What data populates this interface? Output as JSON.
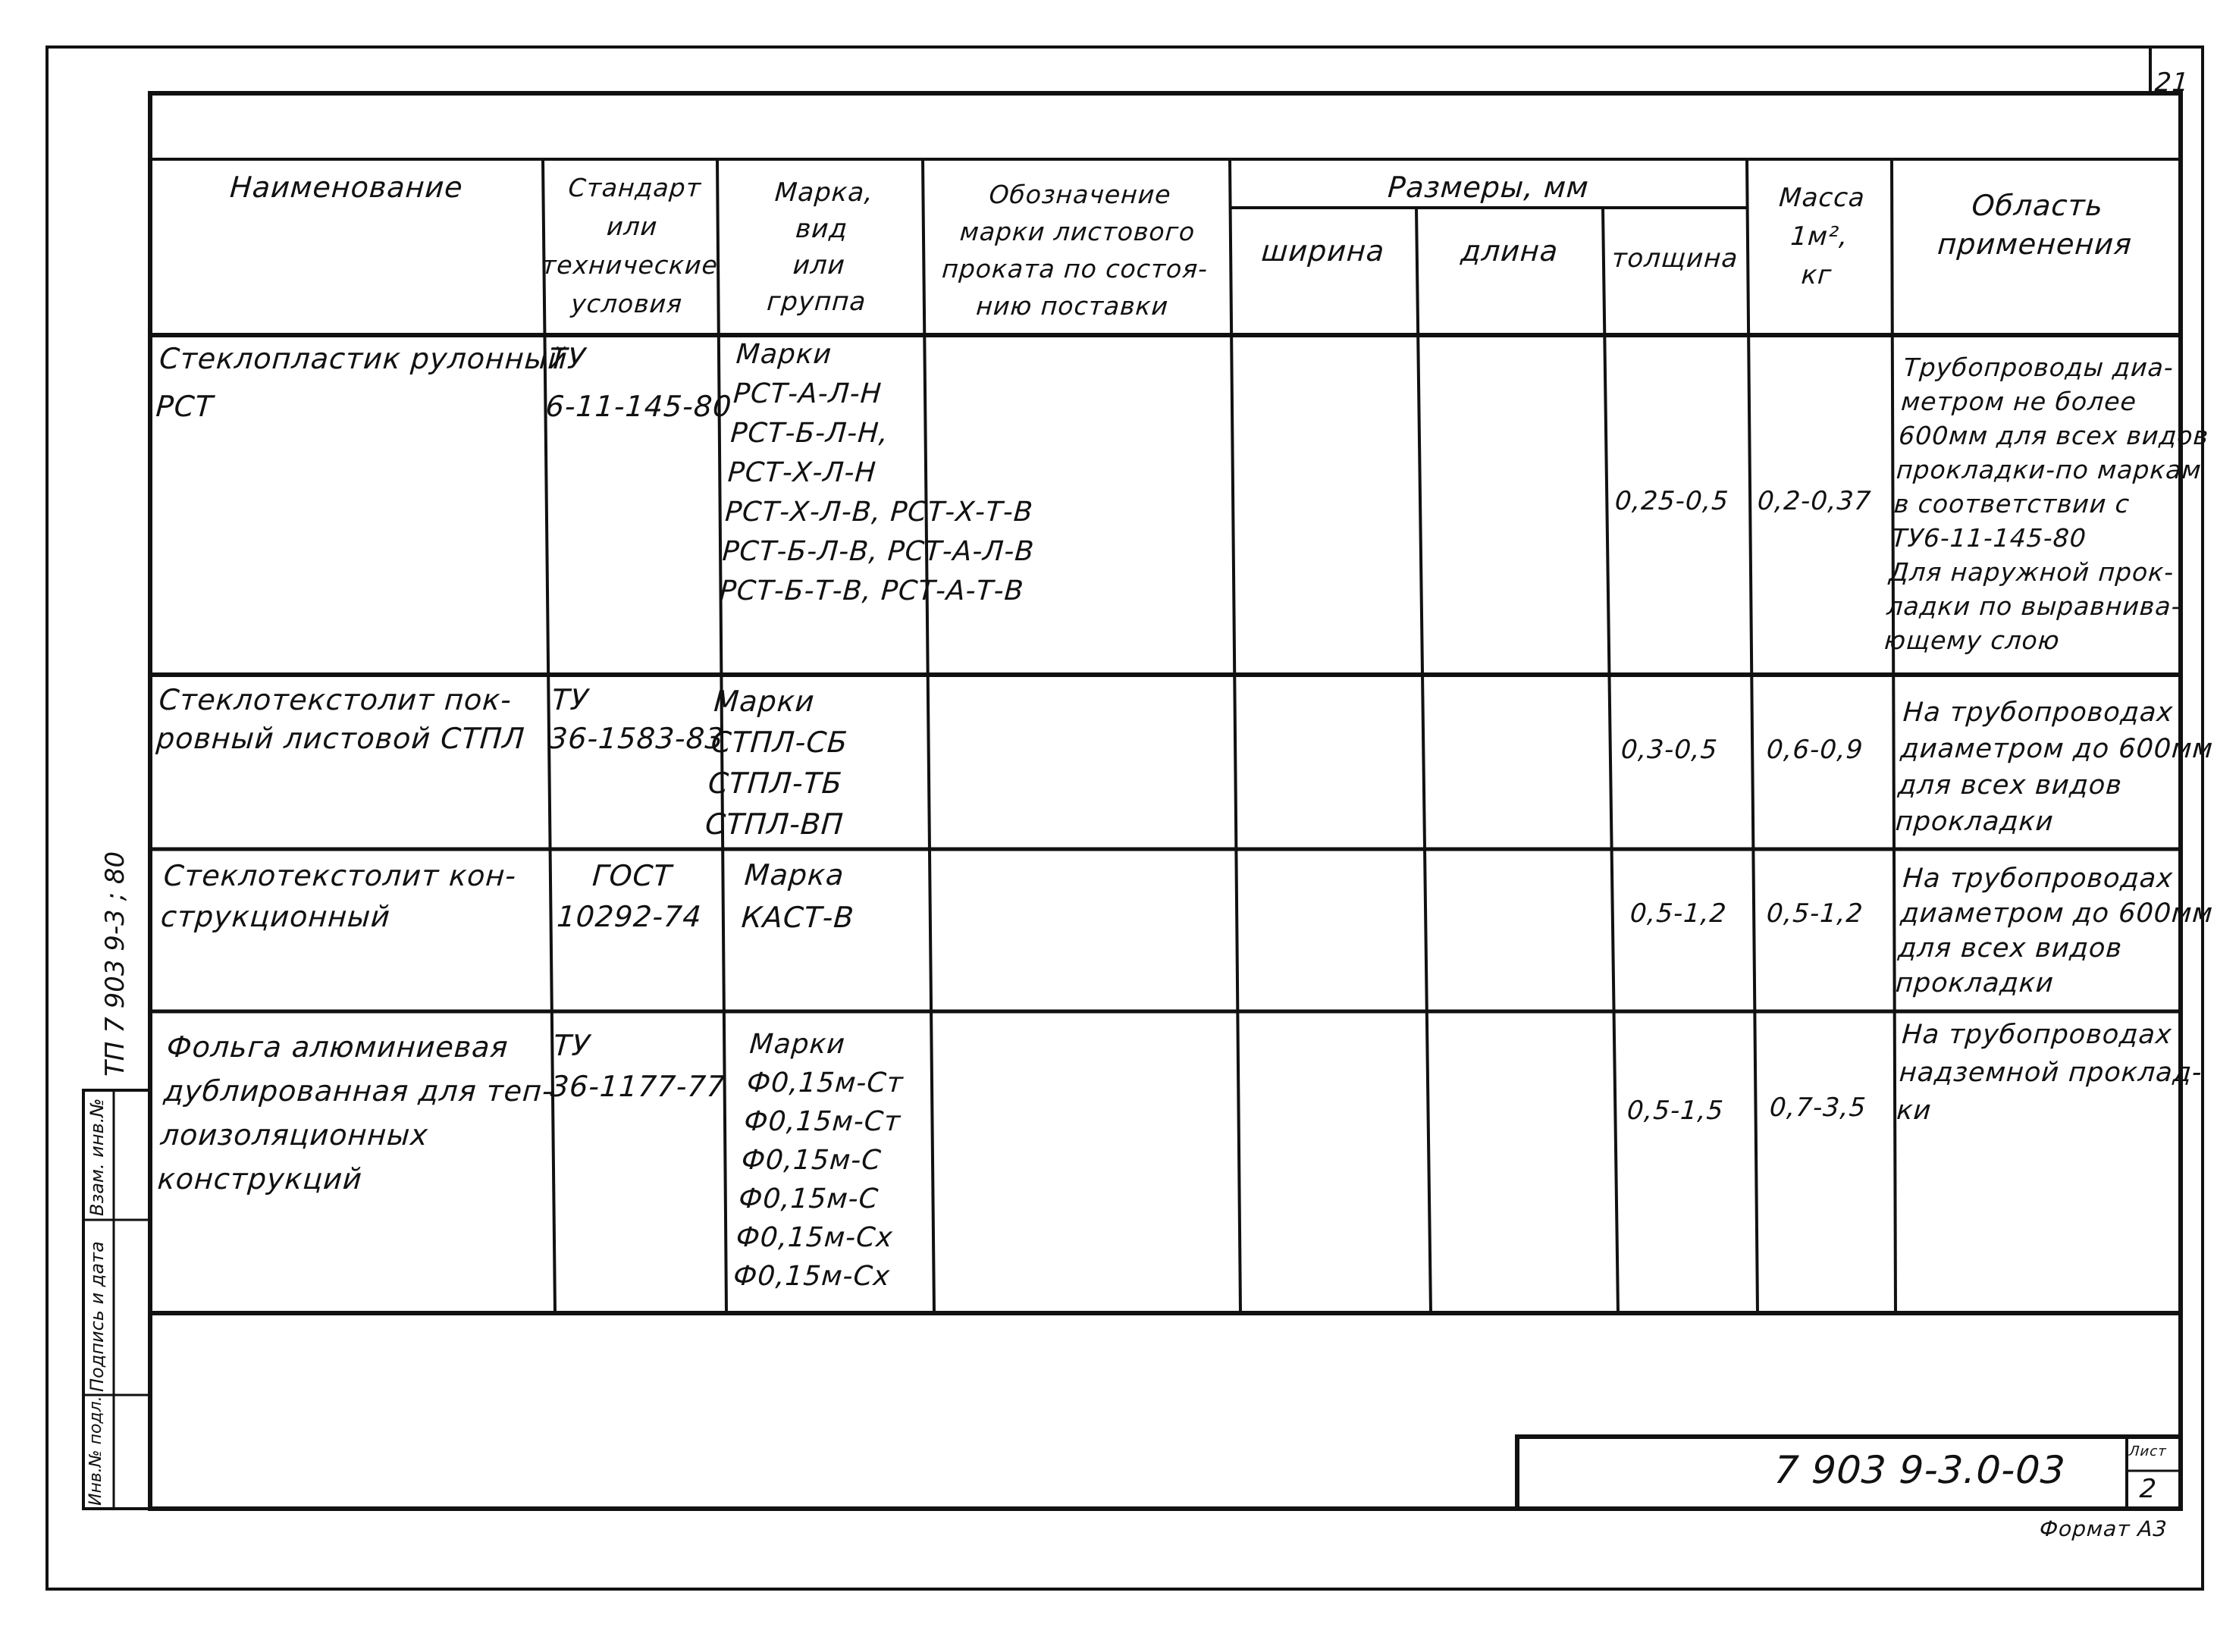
{
  "sheet_corner_number": "21",
  "header": {
    "name": "Наименование",
    "standard": "Стандарт\nили\nтехнические\nусловия",
    "grade": "Марка,\nвид\nили\nгруппа",
    "designation": "Обозначение\nмарки листового\nпроката по состоя-\nнию поставки",
    "dimensions": "Размеры, мм",
    "width": "ширина",
    "length": "длина",
    "thickness": "толщина",
    "mass": "Масса\n1м²,\nкг",
    "application": "Область\nприменения"
  },
  "rows": [
    {
      "name": "Стеклопластик рулонный\nРСТ",
      "standard": "ТУ\n6-11-145-80",
      "grade": "Марки\nРСТ-А-Л-Н\nРСТ-Б-Л-Н,\nРСТ-Х-Л-Н\nРСТ-Х-Л-В, РСТ-Х-Т-В\nРСТ-Б-Л-В, РСТ-А-Л-В\nРСТ-Б-Т-В, РСТ-А-Т-В",
      "designation": "",
      "width": "",
      "length": "",
      "thickness": "0,25-0,5",
      "mass": "0,2-0,37",
      "application": "Трубопроводы диа-\nметром не более\n600мм для всех видов\nпрокладки-по маркам\nв соответствии с\nТУ6-11-145-80\nДля наружной прок-\nладки по выравнива-\nющему слою"
    },
    {
      "name": "Стеклотекстолит пок-\nровный листовой СТПЛ",
      "standard": "ТУ\n36-1583-83",
      "grade": "Марки\nСТПЛ-СБ\nСТПЛ-ТБ\nСТПЛ-ВП",
      "designation": "",
      "width": "",
      "length": "",
      "thickness": "0,3-0,5",
      "mass": "0,6-0,9",
      "application": "На трубопроводах\nдиаметром до 600мм\nдля всех видов\nпрокладки"
    },
    {
      "name": "Стеклотекстолит кон-\nструкционный",
      "standard": "ГОСТ\n10292-74",
      "grade": "Марка\nКАСТ-В",
      "designation": "",
      "width": "",
      "length": "",
      "thickness": "0,5-1,2",
      "mass": "0,5-1,2",
      "application": "На трубопроводах\nдиаметром до 600мм\nдля всех видов\nпрокладки"
    },
    {
      "name": "Фольга алюминиевая\nдублированная для теп-\nлоизоляционных\nконструкций",
      "standard": "ТУ\n36-1177-77",
      "grade": "Марки\nФ0,15м-Ст\nФ0,15м-Ст\nФ0,15м-С\nФ0,15м-С\nФ0,15м-Сх\nФ0,15м-Сх",
      "designation": "",
      "width": "",
      "length": "",
      "thickness": "0,5-1,5",
      "mass": "0,7-3,5",
      "application": "На трубопроводах\nнадземной проклад-\nки"
    }
  ],
  "title_block": {
    "document_code": "7 903 9-3.0-03",
    "sheet_label": "Лист",
    "sheet_number": "2",
    "format": "Формат А3"
  },
  "margin_stamp": {
    "project_ref": "ТП 7 903 9-3 ; 80",
    "fields": [
      "Инв.№ подл.",
      "Подпись и дата",
      "Взам. инв.№"
    ]
  }
}
